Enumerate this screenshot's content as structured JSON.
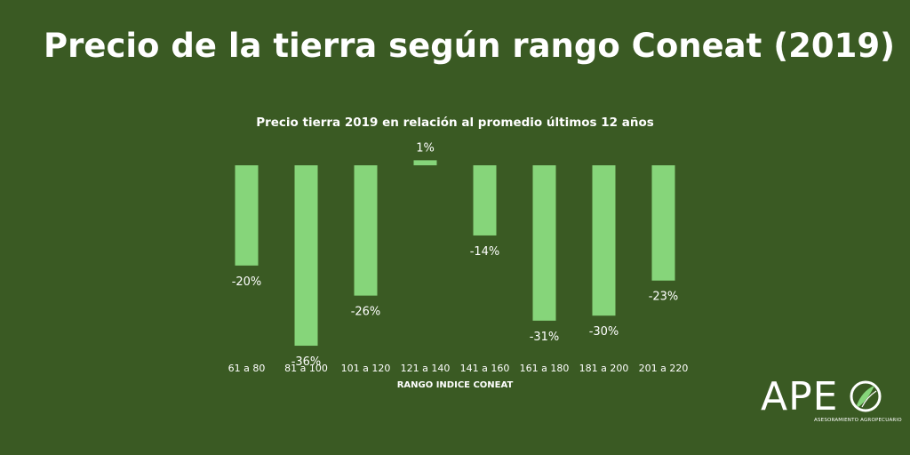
{
  "header": {
    "title": "Precio de la tierra según rango Coneat (2019)"
  },
  "chart_data": {
    "type": "bar",
    "title": "Precio tierra 2019 en relación al promedio últimos 12 años",
    "xlabel": "RANGO INDICE CONEAT",
    "ylabel": "",
    "categories": [
      "61 a 80",
      "81 a 100",
      "101 a 120",
      "121 a 140",
      "141 a 160",
      "161 a 180",
      "181 a 200",
      "201 a 220"
    ],
    "values": [
      -20,
      -36,
      -26,
      1,
      -14,
      -31,
      -30,
      -23
    ],
    "data_labels": [
      "-20%",
      "-36%",
      "-26%",
      "1%",
      "-14%",
      "-31%",
      "-30%",
      "-23%"
    ],
    "ylim": [
      -36,
      1
    ],
    "grid": false,
    "bar_color": "#86d57a"
  },
  "logo": {
    "word": "APE",
    "tagline": "ASESORAMIENTO AGROPECUARIO"
  },
  "colors": {
    "background": "#3a5a23",
    "bar": "#86d57a",
    "text": "#ffffff"
  }
}
